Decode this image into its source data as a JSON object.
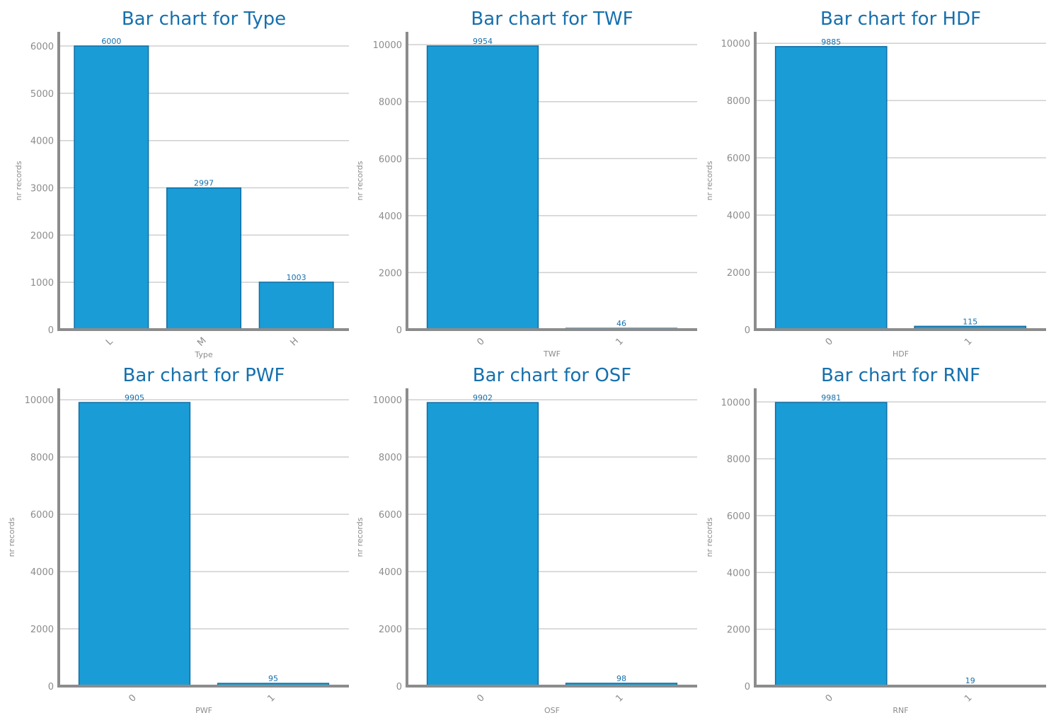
{
  "chart_data": [
    {
      "type": "bar",
      "title": "Bar chart for Type",
      "xlabel": "Type",
      "ylabel": "nr records",
      "categories": [
        "L",
        "M",
        "H"
      ],
      "values": [
        6000,
        2997,
        1003
      ],
      "yticks": [
        0,
        1000,
        2000,
        3000,
        4000,
        5000,
        6000
      ],
      "ylim": [
        0,
        6300
      ],
      "grid": "horizontal",
      "colors": {
        "bar": "#1a9dd6",
        "edge": "#0f6ea6",
        "text": "#1670ad",
        "axis": "#8c8c8c"
      }
    },
    {
      "type": "bar",
      "title": "Bar chart for TWF",
      "xlabel": "TWF",
      "ylabel": "nr records",
      "categories": [
        "0",
        "1"
      ],
      "values": [
        9954,
        46
      ],
      "yticks": [
        0,
        2000,
        4000,
        6000,
        8000,
        10000
      ],
      "ylim": [
        0,
        10450
      ],
      "grid": "horizontal",
      "colors": {
        "bar": "#1a9dd6",
        "edge": "#0f6ea6",
        "text": "#1670ad",
        "axis": "#8c8c8c"
      }
    },
    {
      "type": "bar",
      "title": "Bar chart for HDF",
      "xlabel": "HDF",
      "ylabel": "nr records",
      "categories": [
        "0",
        "1"
      ],
      "values": [
        9885,
        115
      ],
      "yticks": [
        0,
        2000,
        4000,
        6000,
        8000,
        10000
      ],
      "ylim": [
        0,
        10400
      ],
      "grid": "horizontal",
      "colors": {
        "bar": "#1a9dd6",
        "edge": "#0f6ea6",
        "text": "#1670ad",
        "axis": "#8c8c8c"
      }
    },
    {
      "type": "bar",
      "title": "Bar chart for PWF",
      "xlabel": "PWF",
      "ylabel": "nr records",
      "categories": [
        "0",
        "1"
      ],
      "values": [
        9905,
        95
      ],
      "yticks": [
        0,
        2000,
        4000,
        6000,
        8000,
        10000
      ],
      "ylim": [
        0,
        10400
      ],
      "grid": "horizontal",
      "colors": {
        "bar": "#1a9dd6",
        "edge": "#0f6ea6",
        "text": "#1670ad",
        "axis": "#8c8c8c"
      }
    },
    {
      "type": "bar",
      "title": "Bar chart for OSF",
      "xlabel": "OSF",
      "ylabel": "nr records",
      "categories": [
        "0",
        "1"
      ],
      "values": [
        9902,
        98
      ],
      "yticks": [
        0,
        2000,
        4000,
        6000,
        8000,
        10000
      ],
      "ylim": [
        0,
        10400
      ],
      "grid": "horizontal",
      "colors": {
        "bar": "#1a9dd6",
        "edge": "#0f6ea6",
        "text": "#1670ad",
        "axis": "#8c8c8c"
      }
    },
    {
      "type": "bar",
      "title": "Bar chart for RNF",
      "xlabel": "RNF",
      "ylabel": "nr records",
      "categories": [
        "0",
        "1"
      ],
      "values": [
        9981,
        19
      ],
      "yticks": [
        0,
        2000,
        4000,
        6000,
        8000,
        10000
      ],
      "ylim": [
        0,
        10480
      ],
      "grid": "horizontal",
      "colors": {
        "bar": "#1a9dd6",
        "edge": "#0f6ea6",
        "text": "#1670ad",
        "axis": "#8c8c8c"
      }
    }
  ]
}
